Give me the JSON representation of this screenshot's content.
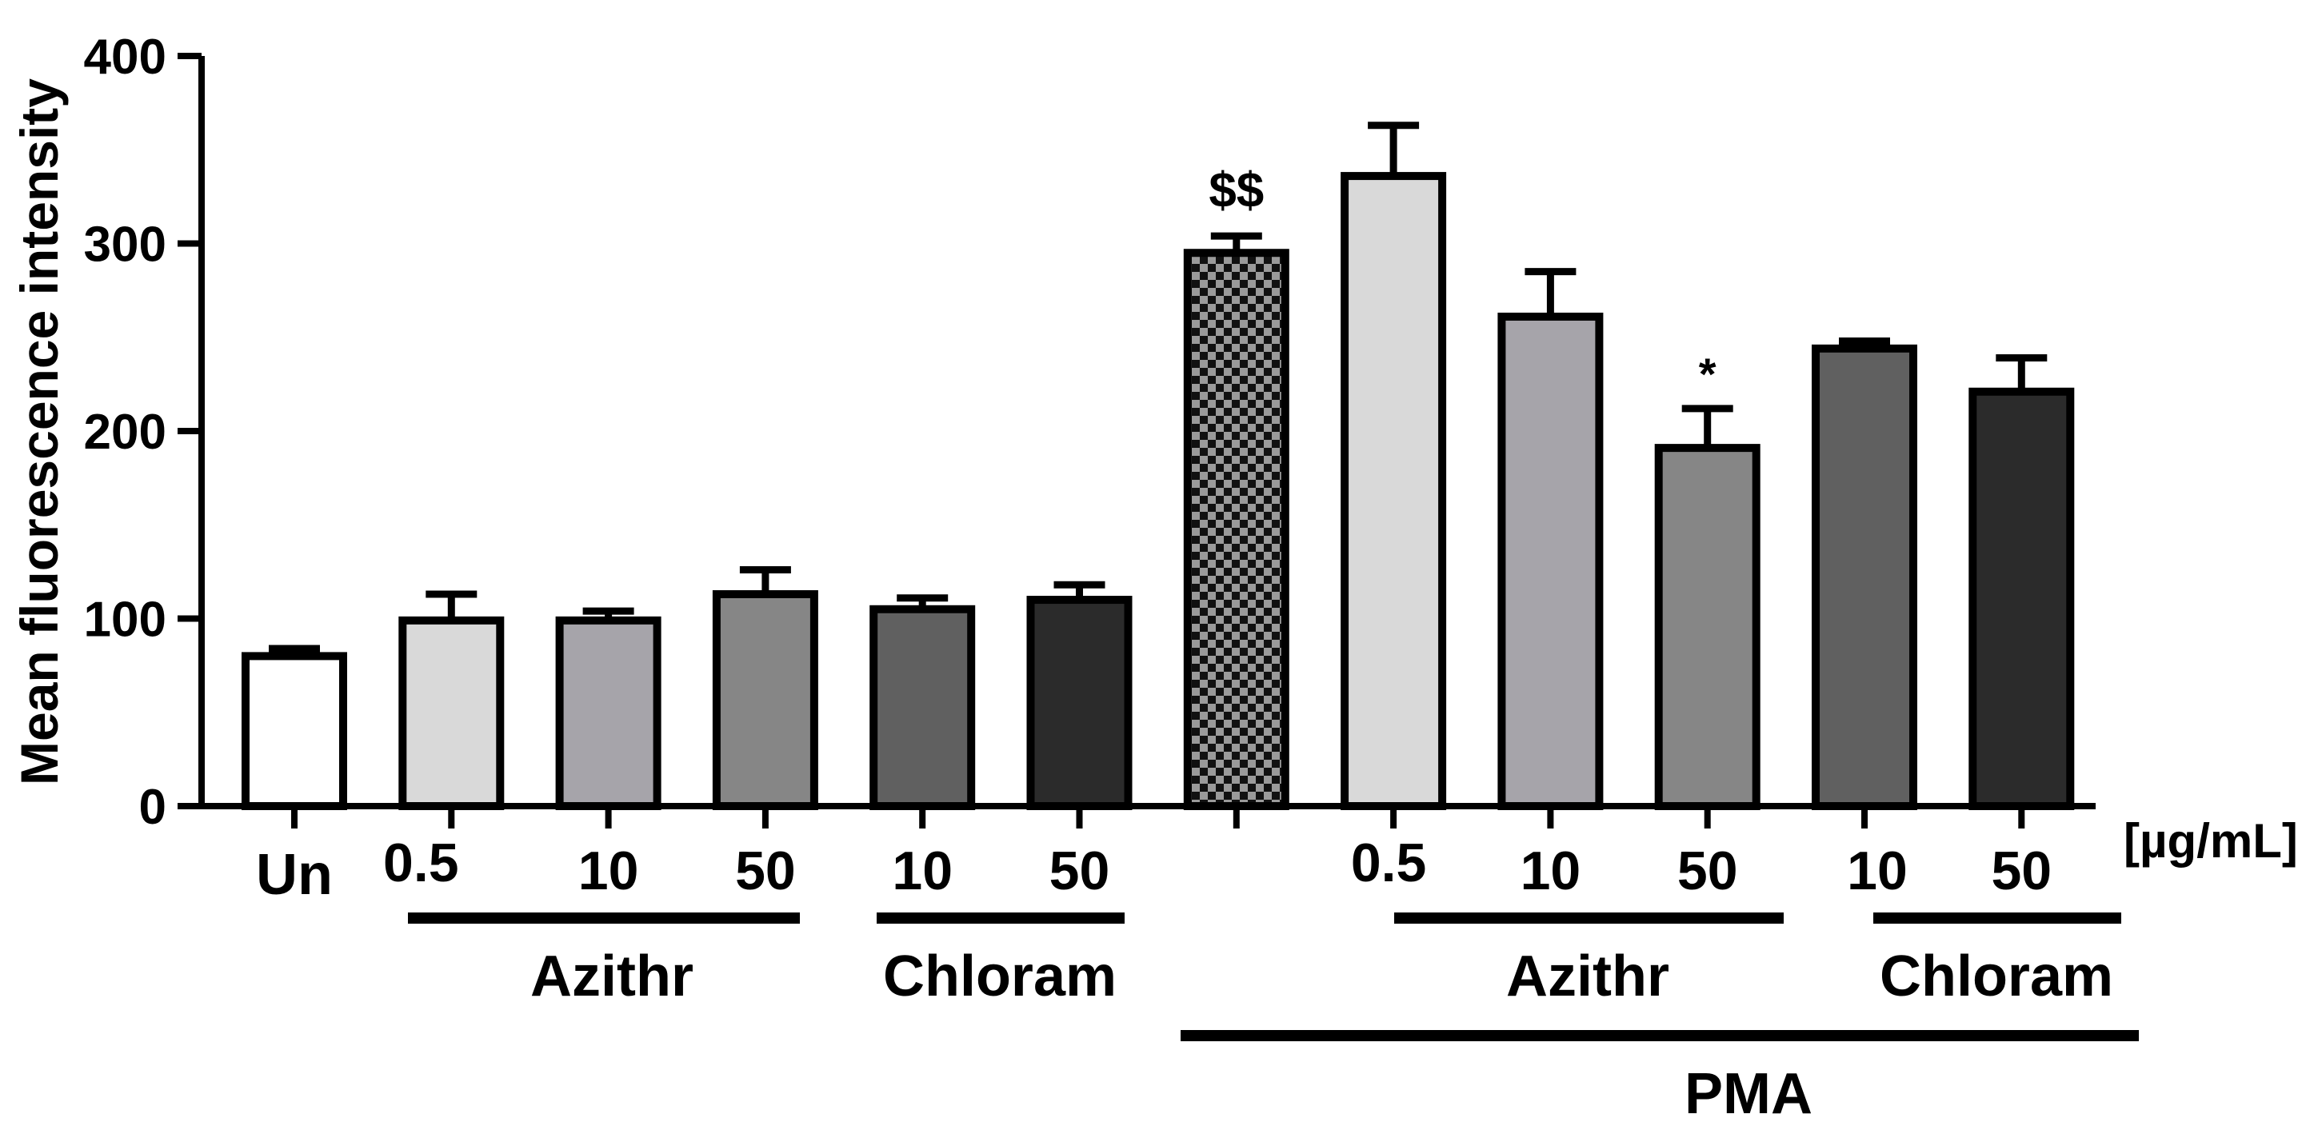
{
  "chart_data": {
    "type": "bar",
    "ylabel": "Mean fluorescence intensity",
    "ylim": [
      0,
      400
    ],
    "yticks": [
      0,
      100,
      200,
      300,
      400
    ],
    "unit_label": "[µg/mL]",
    "grid": false,
    "legend": "none",
    "categories": [
      "Un",
      "0.5",
      "10",
      "50",
      "10",
      "50",
      "",
      "0.5",
      "10",
      "50",
      "10",
      "50"
    ],
    "values": [
      80,
      99,
      99,
      113,
      105,
      110,
      295,
      336,
      261,
      191,
      244,
      221
    ],
    "errors": [
      4,
      14,
      5,
      13,
      6,
      8,
      9,
      27,
      24,
      21,
      4,
      18
    ],
    "bar_colors": [
      "#ffffff",
      "#d9d9d9",
      "#a6a4aa",
      "#868686",
      "#606060",
      "#2b2b2b",
      "checker",
      "#d9d9d9",
      "#a6a4aa",
      "#868686",
      "#606060",
      "#2b2b2b"
    ],
    "annotations": [
      {
        "bar": 6,
        "text": "$$"
      },
      {
        "bar": 9,
        "text": "*"
      }
    ],
    "groups": [
      {
        "label": "Azithr",
        "from": 1,
        "to": 3
      },
      {
        "label": "Chloram",
        "from": 4,
        "to": 5
      },
      {
        "label": "Azithr",
        "from": 7,
        "to": 9
      },
      {
        "label": "Chloram",
        "from": 10,
        "to": 11
      },
      {
        "label": "PMA",
        "from": 6,
        "to": 11
      }
    ]
  }
}
